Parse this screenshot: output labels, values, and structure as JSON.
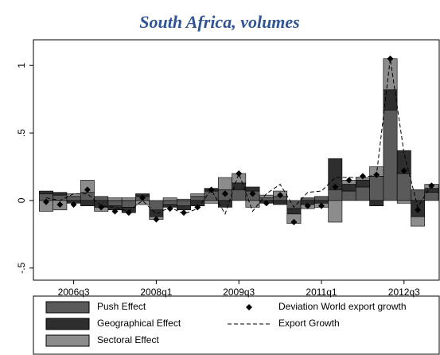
{
  "chart_data": {
    "type": "bar",
    "stacked": true,
    "title": "South Africa, volumes",
    "categories": [
      null,
      null,
      "2006q3",
      null,
      null,
      null,
      null,
      null,
      "2008q1",
      null,
      null,
      null,
      null,
      null,
      "2009q3",
      null,
      null,
      null,
      null,
      null,
      "2011q1",
      null,
      null,
      null,
      null,
      null,
      "2012q3",
      null,
      null
    ],
    "series": [
      {
        "name": "Push Effect",
        "color": "#5a5a5a",
        "values": [
          0.05,
          0.04,
          0.03,
          0.06,
          0.03,
          -0.04,
          -0.05,
          0.03,
          -0.07,
          -0.03,
          -0.04,
          0.03,
          0.07,
          0.08,
          0.08,
          0.07,
          0.02,
          0.03,
          -0.06,
          0.02,
          0.03,
          0.08,
          0.07,
          0.1,
          0.18,
          0.67,
          0.2,
          0.08,
          0.06
        ]
      },
      {
        "name": "Geographical Effect",
        "color": "#2e2e2e",
        "values": [
          0.02,
          0.02,
          -0.02,
          -0.04,
          -0.05,
          -0.03,
          -0.04,
          0.02,
          -0.05,
          -0.02,
          -0.03,
          -0.04,
          0.02,
          -0.05,
          0.05,
          0.03,
          -0.02,
          -0.03,
          -0.04,
          -0.03,
          -0.02,
          0.23,
          0.05,
          0.05,
          -0.04,
          0.15,
          0.17,
          -0.12,
          0.03
        ]
      },
      {
        "name": "Sectoral Effect",
        "color": "#8c8c8c",
        "values": [
          -0.08,
          -0.07,
          0.02,
          0.09,
          -0.03,
          0.02,
          0.02,
          -0.03,
          -0.02,
          0.02,
          0.01,
          0.02,
          -0.02,
          0.09,
          0.07,
          -0.05,
          0.02,
          0.04,
          -0.07,
          -0.03,
          -0.03,
          -0.16,
          0.03,
          0.02,
          0.07,
          0.23,
          -0.02,
          -0.07,
          0.03
        ]
      },
      {
        "name": "Deviation World export growth",
        "type": "scatter",
        "color": "#000000",
        "values": [
          -0.01,
          -0.03,
          -0.03,
          0.08,
          -0.05,
          -0.08,
          -0.09,
          0.02,
          -0.14,
          -0.06,
          -0.09,
          -0.05,
          0.08,
          0.05,
          0.2,
          0.05,
          -0.02,
          0.04,
          -0.16,
          -0.04,
          -0.04,
          0.1,
          0.15,
          0.18,
          0.19,
          1.05,
          0.22,
          -0.07,
          0.11
        ]
      },
      {
        "name": "Export Growth",
        "type": "line",
        "dashed": true,
        "color": "#000000",
        "values": [
          0.02,
          0.0,
          0.05,
          0.05,
          -0.04,
          -0.05,
          -0.08,
          0.0,
          -0.1,
          -0.05,
          -0.1,
          -0.06,
          0.08,
          -0.1,
          0.2,
          -0.08,
          0.05,
          0.12,
          -0.05,
          0.06,
          0.07,
          0.17,
          0.17,
          0.17,
          0.19,
          1.05,
          0.35,
          -0.05,
          0.12
        ]
      }
    ],
    "ylim": [
      -0.59,
      1.19
    ],
    "yticks": [
      {
        "value": -0.5,
        "label": "-.5"
      },
      {
        "value": 0,
        "label": "0"
      },
      {
        "value": 0.5,
        "label": ".5"
      },
      {
        "value": 1,
        "label": "1"
      }
    ],
    "grid": false
  }
}
